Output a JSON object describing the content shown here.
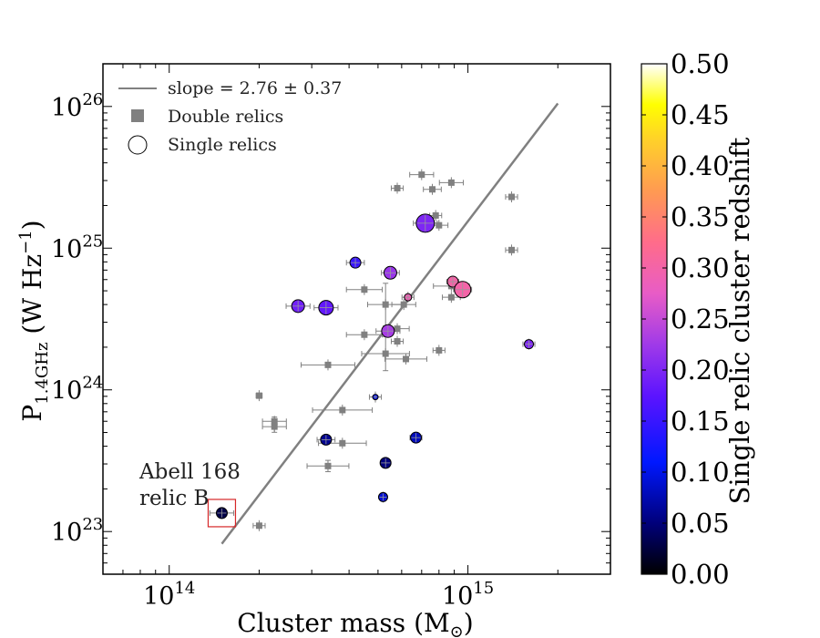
{
  "chart_data": {
    "type": "scatter",
    "x_axis": {
      "label_main": "Cluster mass (M",
      "label_sub": "⊙",
      "label_close": ")",
      "scale": "log",
      "range": [
        60000000000000.0,
        3000000000000000.0
      ],
      "major_ticks": [
        {
          "value": 100000000000000.0,
          "base": "10",
          "exp": "14"
        },
        {
          "value": 1000000000000000.0,
          "base": "10",
          "exp": "15"
        }
      ]
    },
    "y_axis": {
      "label_main": "P",
      "label_sub": "1.4GHz",
      "label_unit": " (W Hz",
      "label_sup": "−1",
      "label_close": ")",
      "scale": "log",
      "range": [
        5e+22,
        2e+26
      ],
      "major_ticks": [
        {
          "value": 1e+23,
          "base": "10",
          "exp": "23"
        },
        {
          "value": 1e+24,
          "base": "10",
          "exp": "24"
        },
        {
          "value": 1e+25,
          "base": "10",
          "exp": "25"
        },
        {
          "value": 1e+26,
          "base": "10",
          "exp": "26"
        }
      ]
    },
    "fit_line": {
      "label": "slope = 2.76 ± 0.37",
      "slope": 2.76,
      "from": [
        150000000000000.0,
        8.2e+22
      ],
      "to": [
        2000000000000000.0,
        1.05e+26
      ],
      "color": "#808080"
    },
    "legend": {
      "position": "top-left",
      "entries": [
        {
          "marker": "line",
          "label": "slope = 2.76 ± 0.37"
        },
        {
          "marker": "square",
          "label": "Double relics"
        },
        {
          "marker": "circle",
          "label": "Single relics"
        }
      ]
    },
    "colorbar": {
      "label": "Single relic cluster redshift",
      "range": [
        0.0,
        0.5
      ],
      "ticks": [
        "0.00",
        "0.05",
        "0.10",
        "0.15",
        "0.20",
        "0.25",
        "0.30",
        "0.35",
        "0.40",
        "0.45",
        "0.50"
      ],
      "colormap": "gnuplot2"
    },
    "annotation": {
      "line1": "Abell 168",
      "line2": "relic B",
      "target": [
        150000000000000.0,
        1.35e+23
      ],
      "box_color": "#d62728"
    },
    "series": [
      {
        "name": "Double relics",
        "marker": "square",
        "color": "#808080",
        "points": [
          {
            "x": 200000000000000.0,
            "y": 1.1e+23,
            "xerr": 0.02
          },
          {
            "x": 200000000000000.0,
            "y": 9.1e+23,
            "xerr": 0.01
          },
          {
            "x": 225000000000000.0,
            "y": 5.5e+23,
            "xerr": 0.04,
            "yerr": 0.04
          },
          {
            "x": 225000000000000.0,
            "y": 6e+23,
            "xerr": 0.04,
            "yerr": 0.03
          },
          {
            "x": 340000000000000.0,
            "y": 2.9e+23,
            "xerr": 0.07,
            "yerr": 0.04
          },
          {
            "x": 340000000000000.0,
            "y": 1.5e+24,
            "xerr": 0.09
          },
          {
            "x": 380000000000000.0,
            "y": 4.2e+23,
            "xerr": 0.08
          },
          {
            "x": 380000000000000.0,
            "y": 7.2e+23,
            "xerr": 0.1
          },
          {
            "x": 450000000000000.0,
            "y": 2.45e+24,
            "xerr": 0.06
          },
          {
            "x": 450000000000000.0,
            "y": 5.1e+24,
            "xerr": 0.06
          },
          {
            "x": 530000000000000.0,
            "y": 1.8e+24,
            "xerr": 0.08,
            "yerr": 0.12
          },
          {
            "x": 530000000000000.0,
            "y": 4e+24,
            "xerr": 0.06,
            "yerr": 0.15
          },
          {
            "x": 580000000000000.0,
            "y": 2.7e+24,
            "xerr": 0.04
          },
          {
            "x": 580000000000000.0,
            "y": 2.2e+24,
            "xerr": 0.02
          },
          {
            "x": 620000000000000.0,
            "y": 1.65e+24,
            "xerr": 0.07
          },
          {
            "x": 580000000000000.0,
            "y": 2.65e+25,
            "xerr": 0.02
          },
          {
            "x": 610000000000000.0,
            "y": 4e+24,
            "xerr": 0.04
          },
          {
            "x": 700000000000000.0,
            "y": 3.3e+25,
            "xerr": 0.04
          },
          {
            "x": 760000000000000.0,
            "y": 2.6e+25,
            "xerr": 0.03
          },
          {
            "x": 780000000000000.0,
            "y": 1.7e+25,
            "xerr": 0.02
          },
          {
            "x": 800000000000000.0,
            "y": 1.45e+25,
            "xerr": 0.03
          },
          {
            "x": 880000000000000.0,
            "y": 2.9e+25,
            "xerr": 0.04
          },
          {
            "x": 800000000000000.0,
            "y": 1.9e+24,
            "xerr": 0.02
          },
          {
            "x": 880000000000000.0,
            "y": 4.5e+24,
            "xerr": 0.03
          },
          {
            "x": 880000000000000.0,
            "y": 5.4e+24,
            "xerr": 0.06
          },
          {
            "x": 1400000000000000.0,
            "y": 2.3e+25,
            "xerr": 0.02
          },
          {
            "x": 1400000000000000.0,
            "y": 9.7e+24,
            "xerr": 0.02
          }
        ]
      },
      {
        "name": "Single relics",
        "marker": "circle",
        "points": [
          {
            "x": 150000000000000.0,
            "y": 1.35e+23,
            "z": 0.03,
            "size": 6,
            "xerr": 0.04
          },
          {
            "x": 270000000000000.0,
            "y": 3.9e+24,
            "z": 0.19,
            "size": 7,
            "xerr": 0.04
          },
          {
            "x": 335000000000000.0,
            "y": 3.8e+24,
            "z": 0.18,
            "size": 8,
            "xerr": 0.04
          },
          {
            "x": 335000000000000.0,
            "y": 4.45e+23,
            "z": 0.06,
            "size": 6,
            "xerr": 0.03
          },
          {
            "x": 420000000000000.0,
            "y": 7.9e+24,
            "z": 0.15,
            "size": 6,
            "xerr": 0.03
          },
          {
            "x": 490000000000000.0,
            "y": 8.9e+23,
            "z": 0.1,
            "size": 3,
            "xerr": 0.02
          },
          {
            "x": 520000000000000.0,
            "y": 1.75e+23,
            "z": 0.09,
            "size": 5
          },
          {
            "x": 530000000000000.0,
            "y": 3.05e+23,
            "z": 0.05,
            "size": 6
          },
          {
            "x": 550000000000000.0,
            "y": 6.7e+24,
            "z": 0.22,
            "size": 7,
            "xerr": 0.03
          },
          {
            "x": 540000000000000.0,
            "y": 2.6e+24,
            "z": 0.23,
            "size": 7,
            "xerr": 0.04
          },
          {
            "x": 630000000000000.0,
            "y": 4.5e+24,
            "z": 0.29,
            "size": 4,
            "xerr": 0.02
          },
          {
            "x": 670000000000000.0,
            "y": 4.6e+23,
            "z": 0.08,
            "size": 6,
            "xerr": 0.02
          },
          {
            "x": 720000000000000.0,
            "y": 1.5e+25,
            "z": 0.2,
            "size": 10,
            "xerr": 0.04
          },
          {
            "x": 890000000000000.0,
            "y": 5.8e+24,
            "z": 0.3,
            "size": 6,
            "xerr": 0.02
          },
          {
            "x": 960000000000000.0,
            "y": 5.1e+24,
            "z": 0.3,
            "size": 9,
            "xerr": 0.03
          },
          {
            "x": 1600000000000000.0,
            "y": 2.1e+24,
            "z": 0.2,
            "size": 5,
            "xerr": 0.02
          }
        ]
      }
    ]
  }
}
